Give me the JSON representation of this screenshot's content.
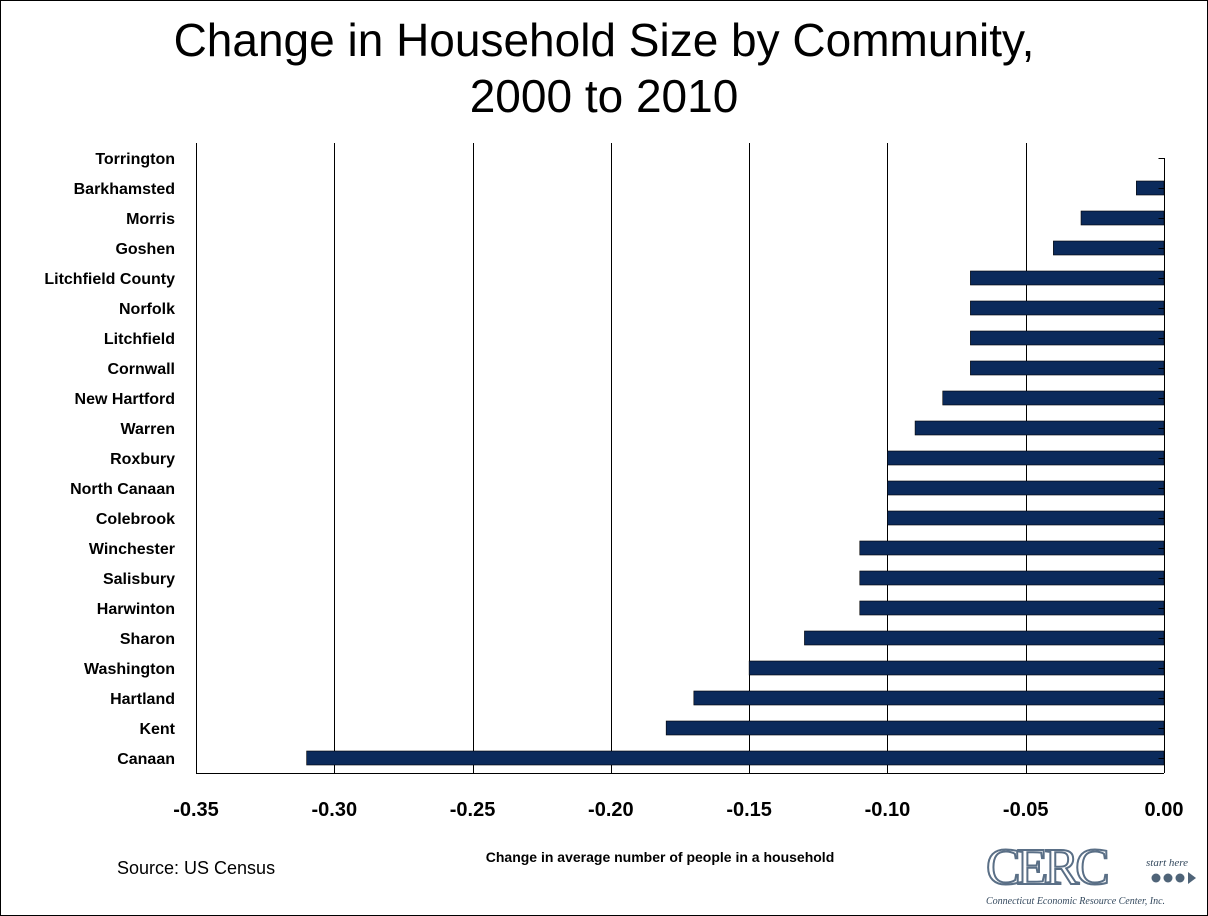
{
  "title_line1": "Change in Household Size by Community,",
  "title_line2": "2000 to 2010",
  "source": "Source:  US Census",
  "logo": {
    "wordmark": "CERC",
    "tagline": "start here",
    "org_name": "Connecticut Economic Resource Center, Inc."
  },
  "colors": {
    "bar": "#0b2a5b",
    "gridline": "#000000",
    "axis": "#000000"
  },
  "chart_data": {
    "type": "bar",
    "orientation": "horizontal",
    "title": "Change in Household Size by Community, 2000 to 2010",
    "xlabel": "Change in average number of people in a household",
    "ylabel": "",
    "categories": [
      "Torrington",
      "Barkhamsted",
      "Morris",
      "Goshen",
      "Litchfield County",
      "Norfolk",
      "Litchfield",
      "Cornwall",
      "New Hartford",
      "Warren",
      "Roxbury",
      "North Canaan",
      "Colebrook",
      "Winchester",
      "Salisbury",
      "Harwinton",
      "Sharon",
      "Washington",
      "Hartland",
      "Kent",
      "Canaan"
    ],
    "values": [
      0.0,
      -0.01,
      -0.03,
      -0.04,
      -0.07,
      -0.07,
      -0.07,
      -0.07,
      -0.08,
      -0.09,
      -0.1,
      -0.1,
      -0.1,
      -0.11,
      -0.11,
      -0.11,
      -0.13,
      -0.15,
      -0.17,
      -0.18,
      -0.31
    ],
    "xlim": [
      -0.35,
      0.0
    ],
    "xticks": [
      "-0.35",
      "-0.30",
      "-0.25",
      "-0.20",
      "-0.15",
      "-0.10",
      "-0.05",
      "0.00"
    ],
    "xtick_values": [
      -0.35,
      -0.3,
      -0.25,
      -0.2,
      -0.15,
      -0.1,
      -0.05,
      0.0
    ],
    "grid": "vertical"
  }
}
